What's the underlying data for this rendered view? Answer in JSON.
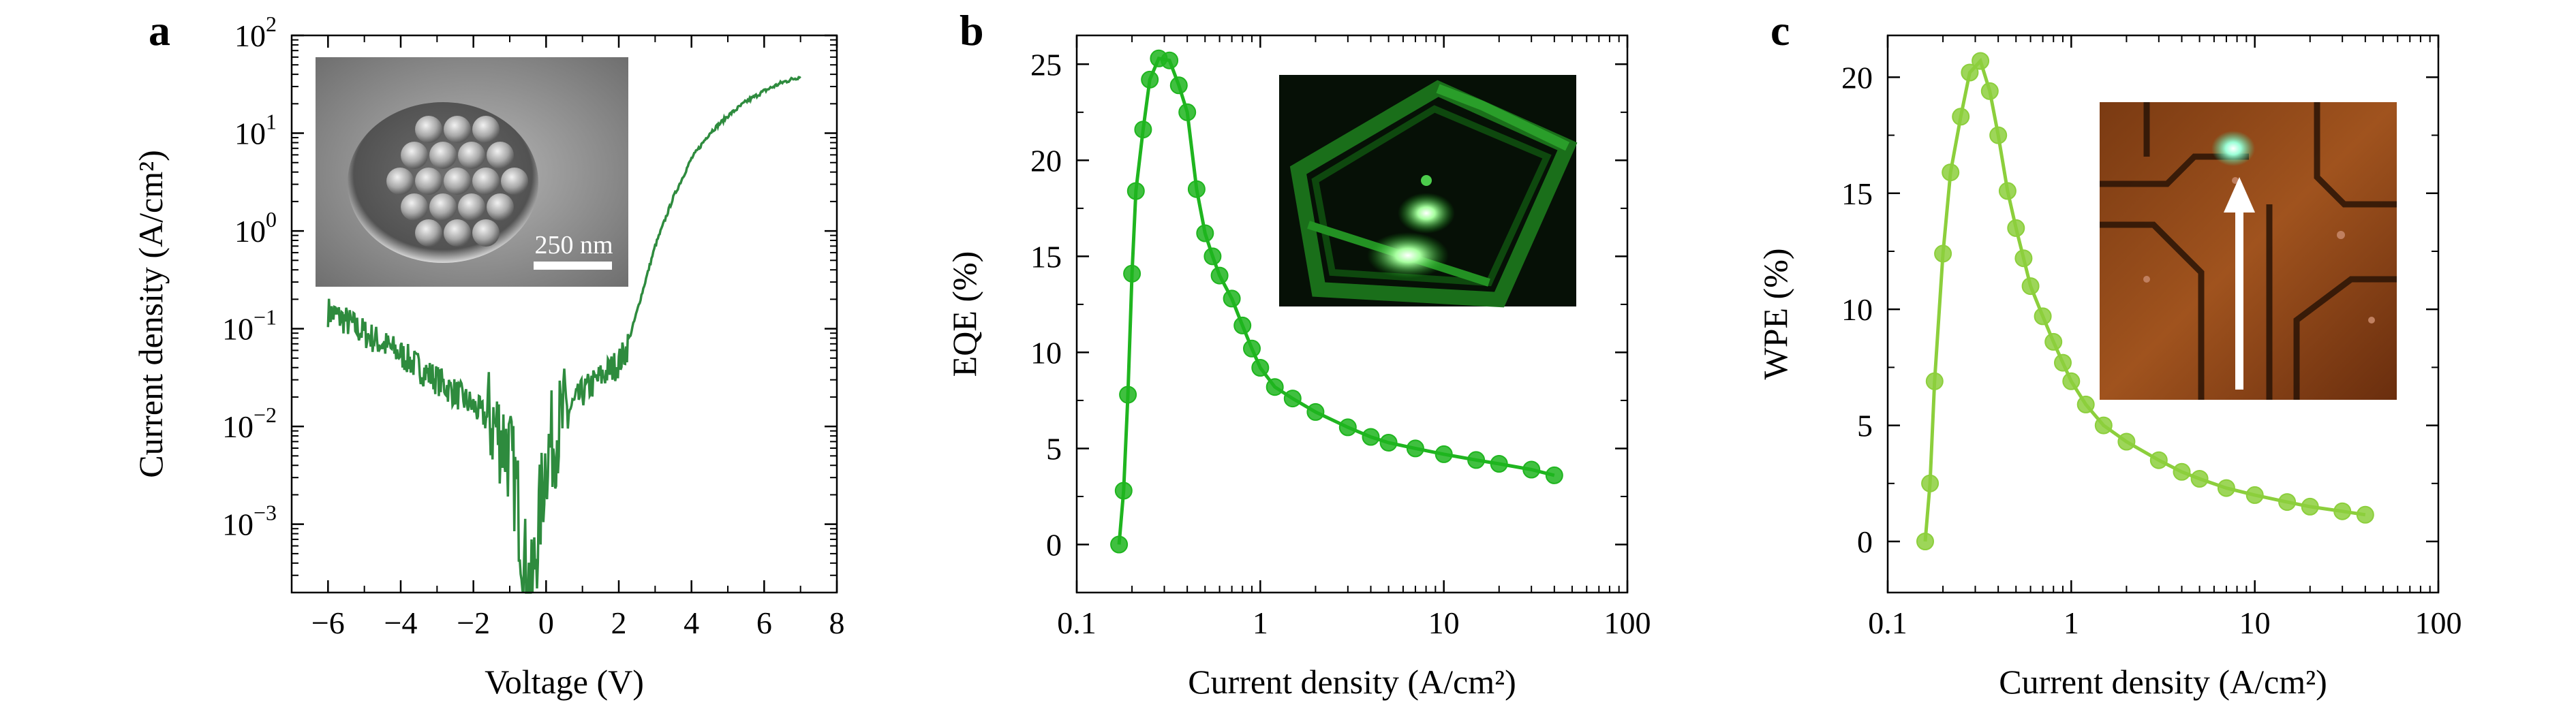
{
  "figure": {
    "panel_letters": [
      "a",
      "b",
      "c"
    ]
  },
  "chart_data": [
    {
      "panel": "a",
      "type": "line",
      "xlabel": "Voltage (V)",
      "ylabel": "Current density (A/cm²)",
      "y_scale": "log",
      "xlim": [
        -7,
        8
      ],
      "ylim": [
        0.0002,
        100
      ],
      "x_ticks": [
        -6,
        -4,
        -2,
        0,
        2,
        4,
        6,
        8
      ],
      "x_tick_labels": [
        "−6",
        "−4",
        "−2",
        "0",
        "2",
        "4",
        "6",
        "8"
      ],
      "y_ticks": [
        0.001,
        0.01,
        0.1,
        1,
        10,
        100
      ],
      "y_tick_labels": [
        {
          "base": "10",
          "exp": "−3"
        },
        {
          "base": "10",
          "exp": "−2"
        },
        {
          "base": "10",
          "exp": "−1"
        },
        {
          "base": "10",
          "exp": "0"
        },
        {
          "base": "10",
          "exp": "1"
        },
        {
          "base": "10",
          "exp": "2"
        }
      ],
      "color": "#2e8b3e",
      "grid": false,
      "series": [
        {
          "x": [
            -6,
            -5.5,
            -5,
            -4.5,
            -4,
            -3.5,
            -3,
            -2.5,
            -2,
            -1.5,
            -1.2,
            -1,
            -0.8,
            -0.6,
            -0.4,
            -0.2,
            0,
            0.3,
            0.6,
            1,
            1.5,
            2,
            2.2,
            2.5,
            3,
            3.5,
            4,
            4.5,
            5,
            5.5,
            6,
            6.5,
            7
          ],
          "y": [
            0.15,
            0.12,
            0.09,
            0.07,
            0.055,
            0.04,
            0.03,
            0.022,
            0.016,
            0.011,
            0.008,
            0.005,
            0.002,
            0.0004,
            0.0002,
            0.001,
            0.005,
            0.009,
            0.014,
            0.022,
            0.032,
            0.045,
            0.06,
            0.15,
            0.7,
            2.2,
            5.5,
            10,
            15,
            21,
            27,
            33,
            38
          ]
        }
      ],
      "inset": {
        "type": "SEM micrograph of nanostructured LED pixel",
        "scale_bar_label": "250 nm"
      }
    },
    {
      "panel": "b",
      "type": "line",
      "xlabel": "Current density (A/cm²)",
      "ylabel": "EQE (%)",
      "x_scale": "log",
      "xlim": [
        0.1,
        100
      ],
      "ylim": [
        -2.5,
        26.5
      ],
      "x_ticks": [
        0.1,
        1,
        10,
        100
      ],
      "x_tick_labels": [
        "0.1",
        "1",
        "10",
        "100"
      ],
      "y_ticks": [
        0,
        5,
        10,
        15,
        20,
        25
      ],
      "y_tick_labels": [
        "0",
        "5",
        "10",
        "15",
        "20",
        "25"
      ],
      "color": "#1fb51f",
      "grid": false,
      "series": [
        {
          "x": [
            0.17,
            0.18,
            0.19,
            0.2,
            0.21,
            0.23,
            0.25,
            0.28,
            0.32,
            0.36,
            0.4,
            0.45,
            0.5,
            0.55,
            0.6,
            0.7,
            0.8,
            0.9,
            1,
            1.2,
            1.5,
            2,
            3,
            4,
            5,
            7,
            10,
            15,
            20,
            30,
            40
          ],
          "y": [
            0,
            2.8,
            7.8,
            14.1,
            18.4,
            21.6,
            24.2,
            25.3,
            25.2,
            23.9,
            22.5,
            18.5,
            16.2,
            15,
            14,
            12.8,
            11.4,
            10.2,
            9.2,
            8.2,
            7.6,
            6.9,
            6.1,
            5.6,
            5.3,
            5,
            4.7,
            4.4,
            4.2,
            3.9,
            3.6
          ]
        }
      ],
      "inset": {
        "type": "photo of green-emitting device"
      }
    },
    {
      "panel": "c",
      "type": "line",
      "xlabel": "Current density (A/cm²)",
      "ylabel": "WPE (%)",
      "x_scale": "log",
      "xlim": [
        0.1,
        100
      ],
      "ylim": [
        -2.2,
        21.8
      ],
      "x_ticks": [
        0.1,
        1,
        10,
        100
      ],
      "x_tick_labels": [
        "0.1",
        "1",
        "10",
        "100"
      ],
      "y_ticks": [
        0,
        5,
        10,
        15,
        20
      ],
      "y_tick_labels": [
        "0",
        "5",
        "10",
        "15",
        "20"
      ],
      "color": "#8ccf3c",
      "grid": false,
      "series": [
        {
          "x": [
            0.16,
            0.17,
            0.18,
            0.2,
            0.22,
            0.25,
            0.28,
            0.32,
            0.36,
            0.4,
            0.45,
            0.5,
            0.55,
            0.6,
            0.7,
            0.8,
            0.9,
            1,
            1.2,
            1.5,
            2,
            3,
            4,
            5,
            7,
            10,
            15,
            20,
            30,
            40
          ],
          "y": [
            0,
            2.5,
            6.9,
            12.4,
            15.9,
            18.3,
            20.2,
            20.7,
            19.4,
            17.5,
            15.1,
            13.5,
            12.2,
            11,
            9.7,
            8.6,
            7.7,
            6.9,
            5.9,
            5,
            4.3,
            3.5,
            3,
            2.7,
            2.3,
            2,
            1.7,
            1.5,
            1.3,
            1.15
          ]
        }
      ],
      "inset": {
        "type": "optical micrograph with arrow pointing to emitting pixel"
      }
    }
  ]
}
